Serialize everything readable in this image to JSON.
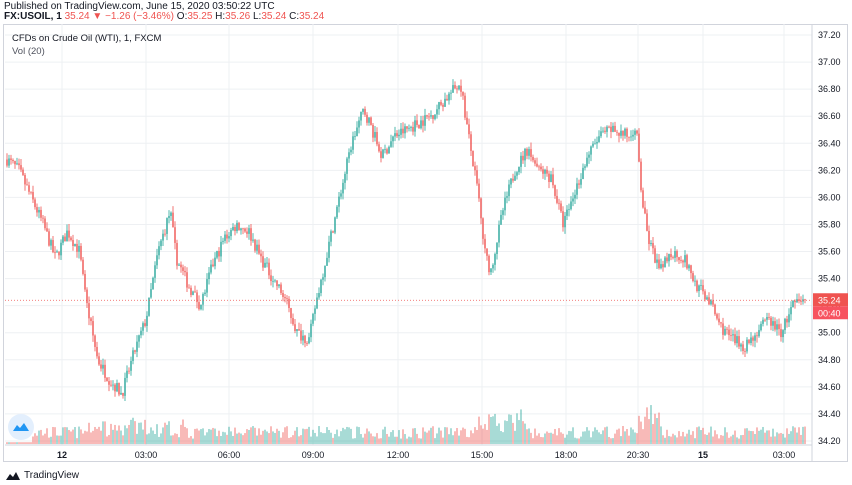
{
  "header": {
    "published": "Published on TradingView.com, June 15, 2020 03:50:22 UTC",
    "symbol": "FX:USOIL, 1",
    "last": "35.24",
    "change_arrow": "▼",
    "change": "−1.26 (−3.46%)",
    "o_label": "O:",
    "o_value": "35.25",
    "h_label": "H:",
    "h_value": "35.26",
    "l_label": "L:",
    "l_value": "35.24",
    "c_label": "C:",
    "c_value": "35.24"
  },
  "legend": {
    "title": "CFDs on Crude Oil (WTI), 1, FXCM",
    "volume": "Vol (20)"
  },
  "price_tag": {
    "price": "35.24",
    "countdown": "00:40"
  },
  "footer": {
    "brand": "TradingView",
    "logo_icon": "tradingview-logo-icon"
  },
  "colors": {
    "up": "#26a69a",
    "down": "#ef5350",
    "grid": "#eef0f3",
    "text": "#131722"
  },
  "chart_data": {
    "type": "candlestick",
    "interval": "1 minute",
    "ylim": [
      34.2,
      37.2
    ],
    "y_ticks": [
      "37.20",
      "37.00",
      "36.80",
      "36.60",
      "36.40",
      "36.20",
      "36.00",
      "35.80",
      "35.60",
      "35.40",
      "35.20",
      "35.00",
      "34.80",
      "34.60",
      "34.40",
      "34.20"
    ],
    "x_ticks": [
      "12",
      "03:00",
      "06:00",
      "09:00",
      "12:00",
      "15:00",
      "18:00",
      "20:30",
      "15",
      "03:00"
    ],
    "last_price": 35.24,
    "price_path": [
      [
        0,
        36.28
      ],
      [
        2,
        36.2
      ],
      [
        4,
        36.0
      ],
      [
        6,
        35.8
      ],
      [
        8,
        35.55
      ],
      [
        10,
        35.75
      ],
      [
        12,
        35.6
      ],
      [
        13,
        35.25
      ],
      [
        15,
        34.8
      ],
      [
        17,
        34.65
      ],
      [
        19,
        34.55
      ],
      [
        21,
        34.85
      ],
      [
        23,
        35.1
      ],
      [
        25,
        35.6
      ],
      [
        27,
        35.9
      ],
      [
        28,
        35.55
      ],
      [
        30,
        35.35
      ],
      [
        32,
        35.2
      ],
      [
        34,
        35.5
      ],
      [
        36,
        35.7
      ],
      [
        38,
        35.8
      ],
      [
        40,
        35.75
      ],
      [
        42,
        35.55
      ],
      [
        44,
        35.4
      ],
      [
        46,
        35.25
      ],
      [
        48,
        35.0
      ],
      [
        50,
        34.95
      ],
      [
        51,
        35.2
      ],
      [
        53,
        35.6
      ],
      [
        55,
        36.0
      ],
      [
        57,
        36.4
      ],
      [
        59,
        36.65
      ],
      [
        60,
        36.55
      ],
      [
        62,
        36.3
      ],
      [
        64,
        36.45
      ],
      [
        66,
        36.5
      ],
      [
        68,
        36.55
      ],
      [
        70,
        36.6
      ],
      [
        72,
        36.7
      ],
      [
        74,
        36.8
      ],
      [
        75,
        36.85
      ],
      [
        76,
        36.55
      ],
      [
        78,
        36.0
      ],
      [
        79,
        35.6
      ],
      [
        80,
        35.45
      ],
      [
        82,
        35.9
      ],
      [
        84,
        36.2
      ],
      [
        86,
        36.35
      ],
      [
        88,
        36.2
      ],
      [
        90,
        36.15
      ],
      [
        92,
        35.8
      ],
      [
        94,
        36.05
      ],
      [
        96,
        36.3
      ],
      [
        98,
        36.45
      ],
      [
        100,
        36.5
      ],
      [
        103,
        36.45
      ],
      [
        104,
        36.55
      ],
      [
        105,
        36.0
      ],
      [
        106,
        35.7
      ],
      [
        108,
        35.45
      ],
      [
        110,
        35.6
      ],
      [
        112,
        35.55
      ],
      [
        114,
        35.35
      ],
      [
        116,
        35.25
      ],
      [
        118,
        35.05
      ],
      [
        120,
        34.95
      ],
      [
        122,
        34.9
      ],
      [
        124,
        35.0
      ],
      [
        126,
        35.1
      ],
      [
        128,
        35.0
      ],
      [
        130,
        35.2
      ],
      [
        132,
        35.24
      ]
    ],
    "volume_ylim": [
      0,
      100
    ],
    "volume_note": "volume histogram per bar, colored by candle direction"
  }
}
